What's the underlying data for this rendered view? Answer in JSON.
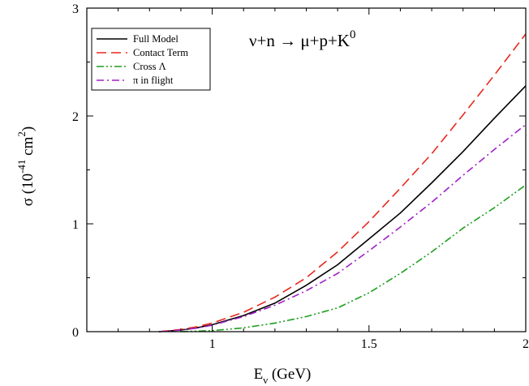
{
  "chart_data": {
    "type": "line",
    "title": {
      "nu": "ν",
      "plus_n": "+n → ",
      "mu": "μ",
      "plus_p_K": "+p+K",
      "K_sup": "0"
    },
    "xlabel": {
      "base": "E",
      "sub": "ν",
      "rest": " (GeV)"
    },
    "ylabel": {
      "sigma": "σ",
      "open": " (10",
      "exp1": "-41",
      "cm": " cm",
      "exp2": "2",
      "close": ")"
    },
    "xlim": [
      0.6,
      2.0
    ],
    "ylim": [
      0,
      3
    ],
    "x_ticks": [
      1,
      1.5,
      2
    ],
    "x_tick_labels": [
      "1",
      "1.5",
      "2"
    ],
    "y_ticks": [
      0,
      1,
      2,
      3
    ],
    "y_tick_labels": [
      "0",
      "1",
      "2",
      "3"
    ],
    "grid": false,
    "legend_position": "top-left",
    "series": [
      {
        "name": "Full Model",
        "color": "#000000",
        "dash": "solid",
        "x": [
          0.83,
          0.9,
          0.95,
          1.0,
          1.1,
          1.2,
          1.3,
          1.4,
          1.5,
          1.6,
          1.7,
          1.8,
          1.9,
          2.0
        ],
        "y": [
          0.0,
          0.015,
          0.035,
          0.065,
          0.15,
          0.265,
          0.43,
          0.62,
          0.86,
          1.1,
          1.38,
          1.67,
          1.98,
          2.28
        ]
      },
      {
        "name": "Contact Term",
        "color": "#e8281e",
        "dash": "dashed",
        "x": [
          0.83,
          0.9,
          0.95,
          1.0,
          1.1,
          1.2,
          1.3,
          1.4,
          1.5,
          1.6,
          1.7,
          1.8,
          1.9,
          2.0
        ],
        "y": [
          0.0,
          0.02,
          0.045,
          0.08,
          0.18,
          0.32,
          0.5,
          0.74,
          1.02,
          1.33,
          1.65,
          2.01,
          2.38,
          2.76
        ]
      },
      {
        "name": "Cross Λ",
        "color": "#1e9e1e",
        "dash": "dash-dot-dot",
        "x": [
          0.9,
          1.0,
          1.1,
          1.2,
          1.3,
          1.4,
          1.5,
          1.6,
          1.7,
          1.8,
          1.9,
          2.0
        ],
        "y": [
          0.0,
          0.01,
          0.035,
          0.08,
          0.14,
          0.22,
          0.36,
          0.54,
          0.74,
          0.96,
          1.15,
          1.36
        ]
      },
      {
        "name": "π in flight",
        "color": "#a020c8",
        "dash": "dash-dot",
        "x": [
          0.83,
          0.9,
          0.95,
          1.0,
          1.1,
          1.2,
          1.3,
          1.4,
          1.5,
          1.6,
          1.7,
          1.8,
          1.9,
          2.0
        ],
        "y": [
          0.0,
          0.015,
          0.032,
          0.06,
          0.14,
          0.245,
          0.38,
          0.54,
          0.75,
          0.97,
          1.2,
          1.45,
          1.69,
          1.92
        ]
      }
    ]
  }
}
